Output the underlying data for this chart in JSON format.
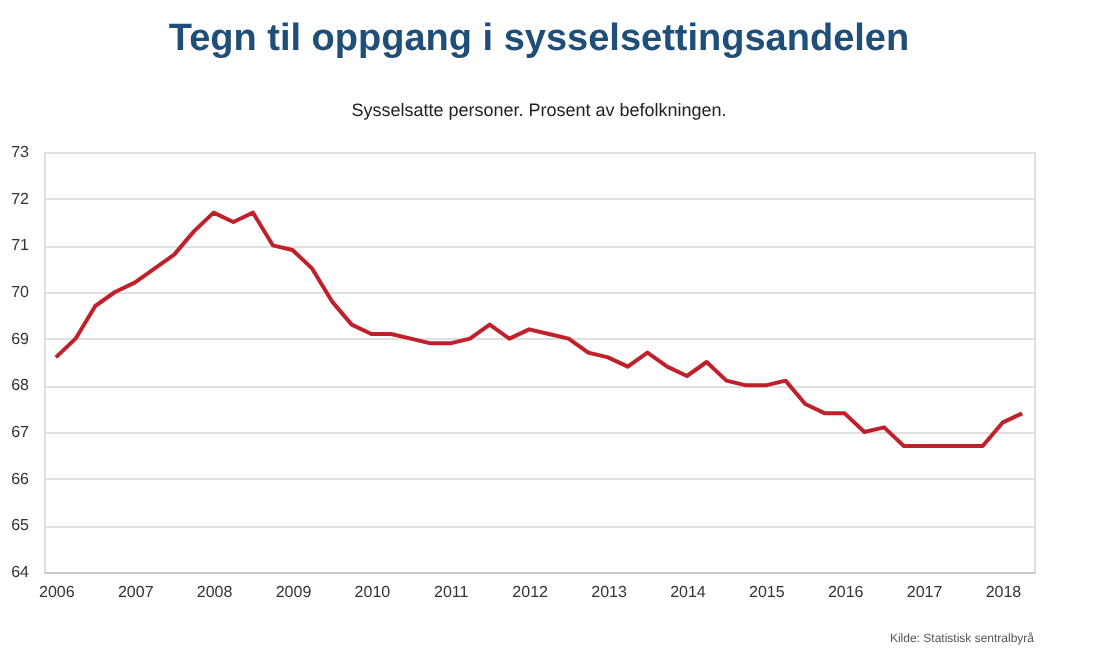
{
  "chart_data": {
    "type": "line",
    "title": "Tegn til oppgang i sysselsettingsandelen",
    "subtitle": "Sysselsatte personer. Prosent av befolkningen.",
    "annotations": [
      "Kilde: Statistisk sentralbyrå"
    ],
    "x": [
      2006,
      2006.25,
      2006.5,
      2006.75,
      2007,
      2007.25,
      2007.5,
      2007.75,
      2008,
      2008.25,
      2008.5,
      2008.75,
      2009,
      2009.25,
      2009.5,
      2009.75,
      2010,
      2010.25,
      2010.5,
      2010.75,
      2011,
      2011.25,
      2011.5,
      2011.75,
      2012,
      2012.25,
      2012.5,
      2012.75,
      2013,
      2013.25,
      2013.5,
      2013.75,
      2014,
      2014.25,
      2014.5,
      2014.75,
      2015,
      2015.25,
      2015.5,
      2015.75,
      2016,
      2016.25,
      2016.5,
      2016.75,
      2017,
      2017.25,
      2017.5,
      2017.75,
      2018,
      2018.25
    ],
    "series": [
      {
        "color": "#c0202a",
        "values": [
          68.6,
          69.0,
          69.7,
          70.0,
          70.2,
          70.5,
          70.8,
          71.3,
          71.7,
          71.5,
          71.7,
          71.0,
          70.9,
          70.5,
          69.8,
          69.3,
          69.1,
          69.1,
          69.0,
          68.9,
          68.9,
          69.0,
          69.3,
          69.0,
          69.2,
          69.1,
          69.0,
          68.7,
          68.6,
          68.4,
          68.7,
          68.4,
          68.2,
          68.5,
          68.1,
          68.0,
          68.0,
          68.1,
          67.6,
          67.4,
          67.4,
          67.0,
          67.1,
          66.7,
          66.7,
          66.7,
          66.7,
          66.7,
          67.2,
          67.4
        ]
      }
    ],
    "xlim": [
      2005.85,
      2018.4
    ],
    "xticks": [
      2006,
      2007,
      2008,
      2009,
      2010,
      2011,
      2012,
      2013,
      2014,
      2015,
      2016,
      2017,
      2018
    ],
    "ylim": [
      64,
      73
    ],
    "yticks": [
      64,
      65,
      66,
      67,
      68,
      69,
      70,
      71,
      72,
      73
    ],
    "grid": "y",
    "legend": false,
    "marker": "none",
    "line_style": "solid"
  }
}
